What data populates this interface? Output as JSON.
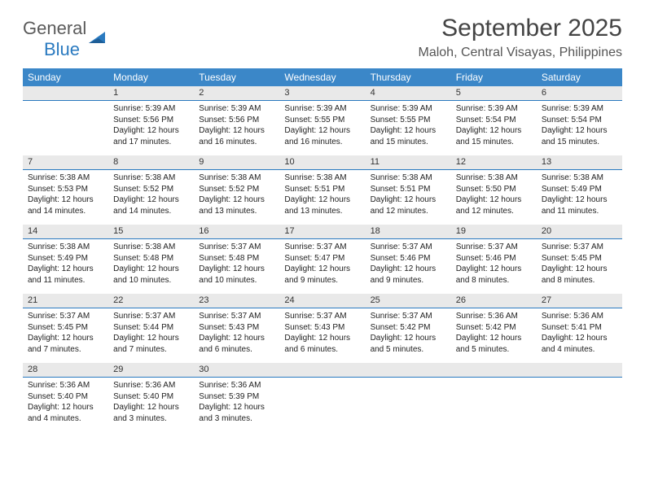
{
  "logo": {
    "word1": "General",
    "word2": "Blue"
  },
  "title": "September 2025",
  "location": "Maloh, Central Visayas, Philippines",
  "colors": {
    "header_bg": "#3b87c8",
    "header_text": "#ffffff",
    "daynum_bg": "#e9e9e9",
    "daynum_rule": "#2a7ac0",
    "page_bg": "#ffffff",
    "body_text": "#222222",
    "title_text": "#444444",
    "logo_gray": "#5a5a5a",
    "logo_blue": "#2a7ac0"
  },
  "layout": {
    "columns": 7,
    "weeks": 5,
    "font_family": "Arial",
    "daynum_fontsize": 11,
    "info_fontsize": 10,
    "head_fontsize": 12,
    "title_fontsize": 30,
    "location_fontsize": 16
  },
  "weekdays": [
    "Sunday",
    "Monday",
    "Tuesday",
    "Wednesday",
    "Thursday",
    "Friday",
    "Saturday"
  ],
  "days": [
    {
      "n": 1,
      "sr": "5:39 AM",
      "ss": "5:56 PM",
      "dl": "12 hours and 17 minutes."
    },
    {
      "n": 2,
      "sr": "5:39 AM",
      "ss": "5:56 PM",
      "dl": "12 hours and 16 minutes."
    },
    {
      "n": 3,
      "sr": "5:39 AM",
      "ss": "5:55 PM",
      "dl": "12 hours and 16 minutes."
    },
    {
      "n": 4,
      "sr": "5:39 AM",
      "ss": "5:55 PM",
      "dl": "12 hours and 15 minutes."
    },
    {
      "n": 5,
      "sr": "5:39 AM",
      "ss": "5:54 PM",
      "dl": "12 hours and 15 minutes."
    },
    {
      "n": 6,
      "sr": "5:39 AM",
      "ss": "5:54 PM",
      "dl": "12 hours and 15 minutes."
    },
    {
      "n": 7,
      "sr": "5:38 AM",
      "ss": "5:53 PM",
      "dl": "12 hours and 14 minutes."
    },
    {
      "n": 8,
      "sr": "5:38 AM",
      "ss": "5:52 PM",
      "dl": "12 hours and 14 minutes."
    },
    {
      "n": 9,
      "sr": "5:38 AM",
      "ss": "5:52 PM",
      "dl": "12 hours and 13 minutes."
    },
    {
      "n": 10,
      "sr": "5:38 AM",
      "ss": "5:51 PM",
      "dl": "12 hours and 13 minutes."
    },
    {
      "n": 11,
      "sr": "5:38 AM",
      "ss": "5:51 PM",
      "dl": "12 hours and 12 minutes."
    },
    {
      "n": 12,
      "sr": "5:38 AM",
      "ss": "5:50 PM",
      "dl": "12 hours and 12 minutes."
    },
    {
      "n": 13,
      "sr": "5:38 AM",
      "ss": "5:49 PM",
      "dl": "12 hours and 11 minutes."
    },
    {
      "n": 14,
      "sr": "5:38 AM",
      "ss": "5:49 PM",
      "dl": "12 hours and 11 minutes."
    },
    {
      "n": 15,
      "sr": "5:38 AM",
      "ss": "5:48 PM",
      "dl": "12 hours and 10 minutes."
    },
    {
      "n": 16,
      "sr": "5:37 AM",
      "ss": "5:48 PM",
      "dl": "12 hours and 10 minutes."
    },
    {
      "n": 17,
      "sr": "5:37 AM",
      "ss": "5:47 PM",
      "dl": "12 hours and 9 minutes."
    },
    {
      "n": 18,
      "sr": "5:37 AM",
      "ss": "5:46 PM",
      "dl": "12 hours and 9 minutes."
    },
    {
      "n": 19,
      "sr": "5:37 AM",
      "ss": "5:46 PM",
      "dl": "12 hours and 8 minutes."
    },
    {
      "n": 20,
      "sr": "5:37 AM",
      "ss": "5:45 PM",
      "dl": "12 hours and 8 minutes."
    },
    {
      "n": 21,
      "sr": "5:37 AM",
      "ss": "5:45 PM",
      "dl": "12 hours and 7 minutes."
    },
    {
      "n": 22,
      "sr": "5:37 AM",
      "ss": "5:44 PM",
      "dl": "12 hours and 7 minutes."
    },
    {
      "n": 23,
      "sr": "5:37 AM",
      "ss": "5:43 PM",
      "dl": "12 hours and 6 minutes."
    },
    {
      "n": 24,
      "sr": "5:37 AM",
      "ss": "5:43 PM",
      "dl": "12 hours and 6 minutes."
    },
    {
      "n": 25,
      "sr": "5:37 AM",
      "ss": "5:42 PM",
      "dl": "12 hours and 5 minutes."
    },
    {
      "n": 26,
      "sr": "5:36 AM",
      "ss": "5:42 PM",
      "dl": "12 hours and 5 minutes."
    },
    {
      "n": 27,
      "sr": "5:36 AM",
      "ss": "5:41 PM",
      "dl": "12 hours and 4 minutes."
    },
    {
      "n": 28,
      "sr": "5:36 AM",
      "ss": "5:40 PM",
      "dl": "12 hours and 4 minutes."
    },
    {
      "n": 29,
      "sr": "5:36 AM",
      "ss": "5:40 PM",
      "dl": "12 hours and 3 minutes."
    },
    {
      "n": 30,
      "sr": "5:36 AM",
      "ss": "5:39 PM",
      "dl": "12 hours and 3 minutes."
    }
  ],
  "labels": {
    "sunrise": "Sunrise:",
    "sunset": "Sunset:",
    "daylight": "Daylight:"
  },
  "first_day_column": 1
}
